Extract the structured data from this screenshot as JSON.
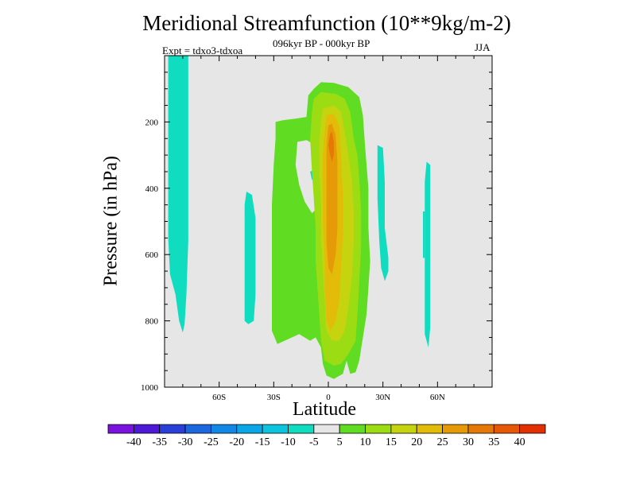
{
  "chart_data": {
    "type": "contour",
    "title": "Meridional Streamfunction (10**9kg/m-2)",
    "subtitle": "096kyr BP - 000kyr BP",
    "left_label": "Expt = tdxo3-tdxoa",
    "right_label": "JJA",
    "xlabel": "Latitude",
    "ylabel": "Pressure (in hPa)",
    "x_range": [
      -90,
      90
    ],
    "y_range": [
      0,
      1000
    ],
    "y_reversed": true,
    "x_ticks": [
      {
        "value": -60,
        "label": "60S"
      },
      {
        "value": -30,
        "label": "30S"
      },
      {
        "value": 0,
        "label": "0"
      },
      {
        "value": 30,
        "label": "30N"
      },
      {
        "value": 60,
        "label": "60N"
      }
    ],
    "y_ticks": [
      {
        "value": 200,
        "label": "200"
      },
      {
        "value": 400,
        "label": "400"
      },
      {
        "value": 600,
        "label": "600"
      },
      {
        "value": 800,
        "label": "800"
      },
      {
        "value": 1000,
        "label": "1000"
      }
    ],
    "background_color": "#e6e6e6",
    "colorbar": {
      "colors": [
        "#7a12e0",
        "#4d18d6",
        "#2a3fd8",
        "#1c66de",
        "#1288e6",
        "#0aa6e8",
        "#0dc4de",
        "#10dcc0",
        "#e6e6e6",
        "#60dc22",
        "#9cdc12",
        "#c6d410",
        "#e2bc08",
        "#e69a08",
        "#e67808",
        "#e65806",
        "#e23004"
      ],
      "labels": [
        "-40",
        "-35",
        "-30",
        "-25",
        "-20",
        "-15",
        "-10",
        "-5",
        "5",
        "10",
        "15",
        "20",
        "25",
        "30",
        "35",
        "40"
      ]
    },
    "regions": [
      {
        "level": -5,
        "color": "#10dcc0",
        "points": [
          [
            -88,
            0
          ],
          [
            -77,
            0
          ],
          [
            -77,
            560
          ],
          [
            -78,
            720
          ],
          [
            -79,
            810
          ],
          [
            -80,
            835
          ],
          [
            -82,
            800
          ],
          [
            -84,
            720
          ],
          [
            -87,
            660
          ],
          [
            -88,
            550
          ]
        ]
      },
      {
        "level": -5,
        "color": "#10dcc0",
        "points": [
          [
            -45,
            410
          ],
          [
            -42,
            420
          ],
          [
            -40,
            490
          ],
          [
            -40,
            610
          ],
          [
            -40,
            720
          ],
          [
            -41,
            800
          ],
          [
            -44,
            810
          ],
          [
            -46,
            800
          ],
          [
            -46,
            660
          ],
          [
            -46,
            520
          ],
          [
            -46,
            450
          ]
        ]
      },
      {
        "level": -5,
        "color": "#10dcc0",
        "points": [
          [
            27,
            270
          ],
          [
            30,
            278
          ],
          [
            31,
            380
          ],
          [
            31,
            520
          ],
          [
            33,
            610
          ],
          [
            33,
            650
          ],
          [
            31,
            680
          ],
          [
            29,
            640
          ],
          [
            28,
            560
          ],
          [
            27,
            430
          ]
        ]
      },
      {
        "level": -5,
        "color": "#10dcc0",
        "points": [
          [
            54,
            320
          ],
          [
            56,
            330
          ],
          [
            56,
            440
          ],
          [
            56,
            560
          ],
          [
            56,
            700
          ],
          [
            56,
            820
          ],
          [
            55,
            880
          ],
          [
            53,
            840
          ],
          [
            53,
            700
          ],
          [
            53,
            520
          ],
          [
            53,
            380
          ]
        ]
      },
      {
        "level": -5,
        "color": "#10dcc0",
        "points": [
          [
            52,
            470
          ],
          [
            53,
            470
          ],
          [
            53,
            610
          ],
          [
            52,
            610
          ]
        ]
      },
      {
        "level": -5,
        "color": "#10dcc0",
        "points": [
          [
            -10,
            350
          ],
          [
            -8,
            345
          ],
          [
            -7,
            370
          ],
          [
            -9,
            375
          ]
        ]
      },
      {
        "level": 5,
        "color": "#60dc22",
        "points": [
          [
            -29,
            200
          ],
          [
            -25,
            195
          ],
          [
            -18,
            190
          ],
          [
            -12,
            185
          ],
          [
            -11,
            120
          ],
          [
            -8,
            100
          ],
          [
            -4,
            80
          ],
          [
            3,
            82
          ],
          [
            11,
            95
          ],
          [
            17,
            125
          ],
          [
            19,
            180
          ],
          [
            20,
            260
          ],
          [
            22,
            400
          ],
          [
            22,
            520
          ],
          [
            23,
            620
          ],
          [
            22,
            700
          ],
          [
            21,
            780
          ],
          [
            19,
            850
          ],
          [
            17,
            920
          ],
          [
            15,
            955
          ],
          [
            12,
            960
          ],
          [
            10,
            920
          ],
          [
            8,
            960
          ],
          [
            3,
            975
          ],
          [
            -1,
            965
          ],
          [
            -3,
            930
          ],
          [
            -4,
            880
          ],
          [
            -7,
            850
          ],
          [
            -10,
            860
          ],
          [
            -16,
            840
          ],
          [
            -28,
            870
          ],
          [
            -31,
            830
          ],
          [
            -31,
            700
          ],
          [
            -31,
            560
          ],
          [
            -31,
            450
          ],
          [
            -30,
            330
          ],
          [
            -29,
            250
          ]
        ],
        "holes": [
          [
            [
              -17,
              260
            ],
            [
              -12,
              255
            ],
            [
              -7,
              270
            ],
            [
              -5,
              320
            ],
            [
              -5,
              410
            ],
            [
              -6,
              460
            ],
            [
              -9,
              475
            ],
            [
              -13,
              440
            ],
            [
              -16,
              390
            ],
            [
              -18,
              330
            ]
          ]
        ]
      },
      {
        "level": 10,
        "color": "#9cdc12",
        "points": [
          [
            -8,
            130
          ],
          [
            -4,
            110
          ],
          [
            4,
            115
          ],
          [
            9,
            130
          ],
          [
            12,
            170
          ],
          [
            14,
            250
          ],
          [
            16,
            300
          ],
          [
            17,
            370
          ],
          [
            18,
            470
          ],
          [
            18,
            580
          ],
          [
            17,
            680
          ],
          [
            16,
            780
          ],
          [
            15,
            860
          ],
          [
            11,
            900
          ],
          [
            7,
            930
          ],
          [
            3,
            935
          ],
          [
            -2,
            920
          ],
          [
            -4,
            860
          ],
          [
            -5,
            780
          ],
          [
            -6,
            700
          ],
          [
            -7,
            620
          ],
          [
            -7,
            520
          ],
          [
            -8,
            430
          ],
          [
            -9,
            350
          ],
          [
            -10,
            250
          ],
          [
            -9,
            170
          ]
        ]
      },
      {
        "level": 15,
        "color": "#c6d410",
        "points": [
          [
            -3,
            160
          ],
          [
            3,
            150
          ],
          [
            7,
            170
          ],
          [
            9,
            230
          ],
          [
            11,
            300
          ],
          [
            13,
            380
          ],
          [
            14,
            470
          ],
          [
            14,
            560
          ],
          [
            13,
            660
          ],
          [
            11,
            760
          ],
          [
            9,
            830
          ],
          [
            6,
            860
          ],
          [
            2,
            860
          ],
          [
            -1,
            830
          ],
          [
            -2,
            740
          ],
          [
            -3,
            640
          ],
          [
            -4,
            550
          ],
          [
            -4,
            450
          ],
          [
            -5,
            350
          ],
          [
            -5,
            260
          ],
          [
            -4,
            200
          ]
        ]
      },
      {
        "level": 20,
        "color": "#e2bc08",
        "points": [
          [
            -1,
            180
          ],
          [
            3,
            175
          ],
          [
            6,
            210
          ],
          [
            7,
            300
          ],
          [
            8,
            420
          ],
          [
            8,
            540
          ],
          [
            7,
            640
          ],
          [
            6,
            740
          ],
          [
            4,
            800
          ],
          [
            1,
            830
          ],
          [
            -1,
            800
          ],
          [
            -2,
            700
          ],
          [
            -2,
            600
          ],
          [
            -3,
            500
          ],
          [
            -3,
            400
          ],
          [
            -3,
            300
          ],
          [
            -2,
            230
          ]
        ]
      },
      {
        "level": 25,
        "color": "#e69a08",
        "points": [
          [
            0,
            210
          ],
          [
            2,
            205
          ],
          [
            4,
            240
          ],
          [
            5,
            320
          ],
          [
            5,
            420
          ],
          [
            5,
            520
          ],
          [
            4,
            600
          ],
          [
            2,
            660
          ],
          [
            0,
            640
          ],
          [
            -1,
            560
          ],
          [
            -1,
            460
          ],
          [
            -1,
            360
          ],
          [
            -1,
            280
          ]
        ]
      },
      {
        "level": 30,
        "color": "#e67808",
        "points": [
          [
            1,
            235
          ],
          [
            2,
            230
          ],
          [
            3,
            260
          ],
          [
            3,
            300
          ],
          [
            2,
            320
          ],
          [
            1,
            300
          ],
          [
            0,
            270
          ]
        ]
      }
    ]
  }
}
